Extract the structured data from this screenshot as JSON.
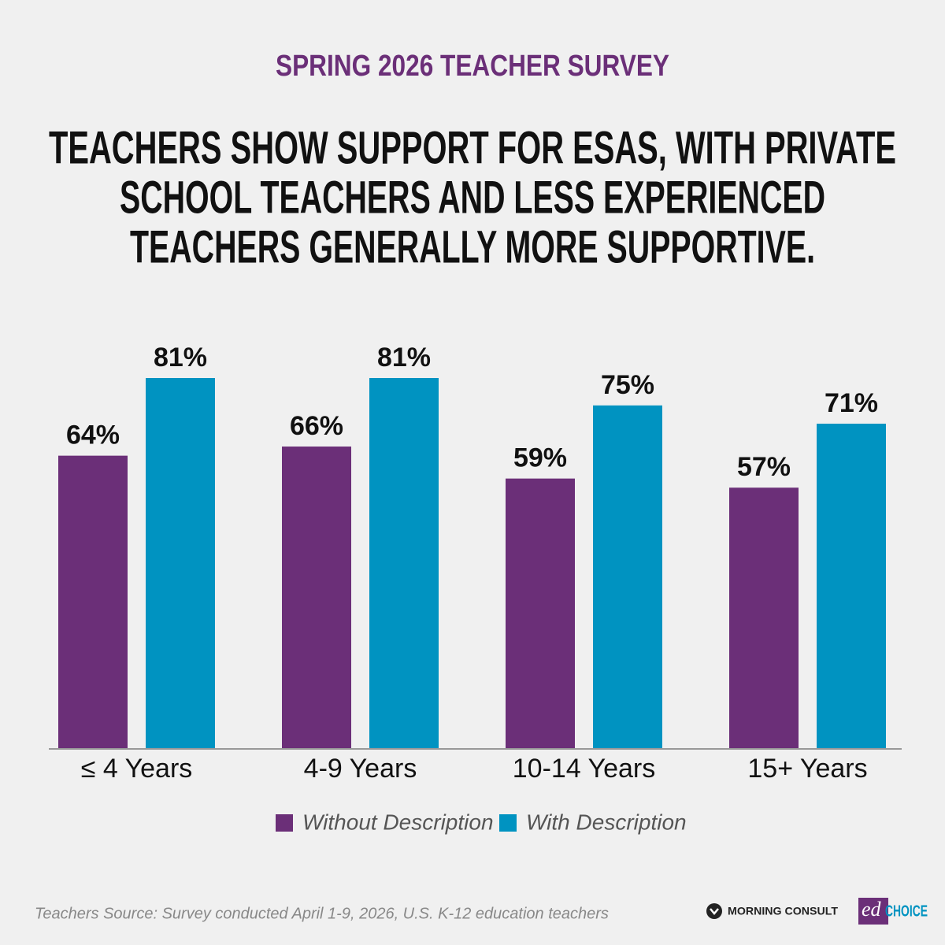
{
  "chart_data": {
    "type": "bar",
    "subtitle": "SPRING 2026 TEACHER SURVEY",
    "title": [
      "TEACHERS SHOW SUPPORT FOR ESAS, WITH PRIVATE",
      "SCHOOL TEACHERS AND LESS EXPERIENCED",
      "TEACHERS GENERALLY MORE SUPPORTIVE."
    ],
    "categories": [
      "≤ 4 Years",
      "4-9 Years",
      "10-14 Years",
      "15+ Years"
    ],
    "series": [
      {
        "name": "Without Description",
        "color": "#6b2f78",
        "values": [
          64,
          66,
          59,
          57
        ],
        "value_labels": [
          "64%",
          "66%",
          "59%",
          "57%"
        ]
      },
      {
        "name": "With Description",
        "color": "#0093c1",
        "values": [
          81,
          81,
          75,
          71
        ],
        "value_labels": [
          "81%",
          "81%",
          "75%",
          "71%"
        ]
      }
    ],
    "source": "Teachers Source: Survey conducted April 1-9, 2026, U.S. K-12 education teachers",
    "logos": {
      "morning_consult": "MORNING CONSULT",
      "edchoice": [
        "ed",
        "CHOICE"
      ]
    }
  }
}
